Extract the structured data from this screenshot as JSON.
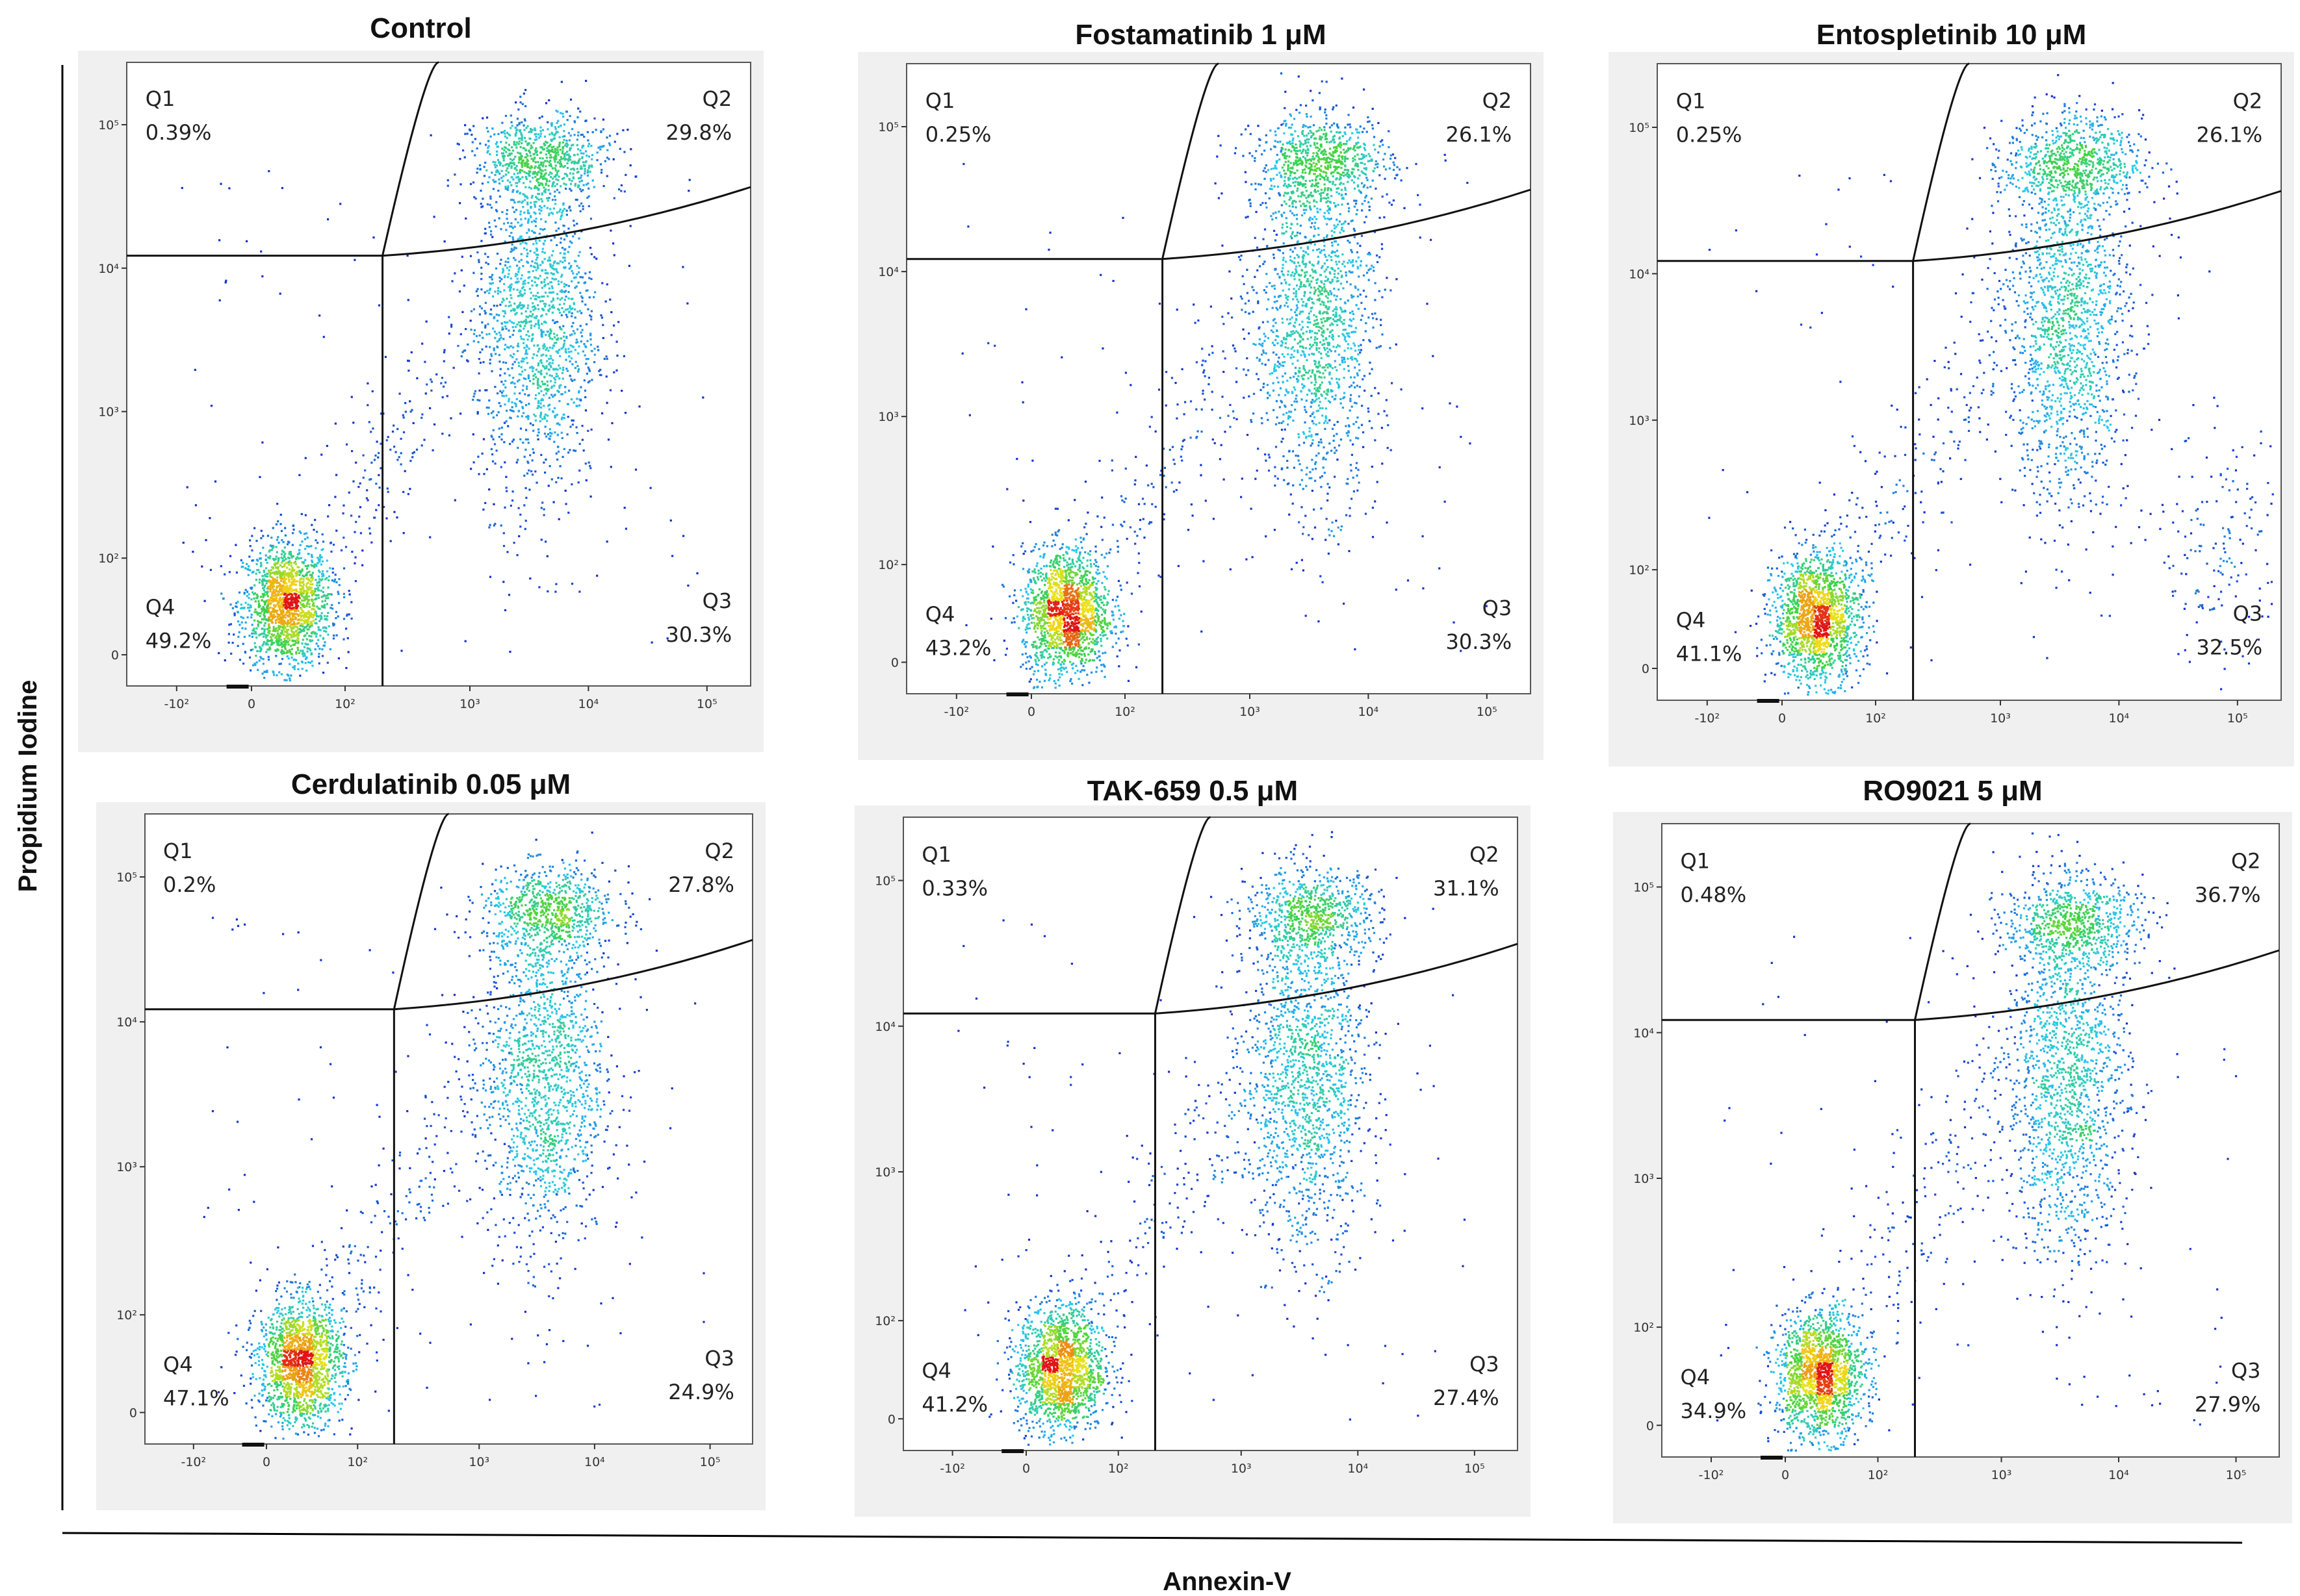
{
  "chart_data": {
    "type": "scatter",
    "subtype": "flow-cytometry-density-dot-plot",
    "xlabel": "Annexin-V",
    "ylabel": "Propidium Iodine",
    "x_ticks": [
      "-10²",
      "0",
      "10²",
      "10³",
      "10⁴",
      "10⁵"
    ],
    "y_ticks": [
      "0",
      "10²",
      "10³",
      "10⁴",
      "10⁵"
    ],
    "quadrant_labels": [
      "Q1",
      "Q2",
      "Q3",
      "Q4"
    ],
    "panels": [
      {
        "title": "Control",
        "Q1": "0.39%",
        "Q2": "29.8%",
        "Q3": "30.3%",
        "Q4": "49.2%"
      },
      {
        "title": "Fostamatinib 1 μM",
        "Q1": "0.25%",
        "Q2": "26.1%",
        "Q3": "30.3%",
        "Q4": "43.2%"
      },
      {
        "title": "Entospletinib 10 μM",
        "Q1": "0.25%",
        "Q2": "26.1%",
        "Q3": "32.5%",
        "Q4": "41.1%"
      },
      {
        "title": "Cerdulatinib 0.05 μM",
        "Q1": "0.2%",
        "Q2": "27.8%",
        "Q3": "24.9%",
        "Q4": "47.1%"
      },
      {
        "title": "TAK-659 0.5 μM",
        "Q1": "0.33%",
        "Q2": "31.1%",
        "Q3": "27.4%",
        "Q4": "41.2%"
      },
      {
        "title": "RO9021 5 μM",
        "Q1": "0.48%",
        "Q2": "36.7%",
        "Q3": "27.9%",
        "Q4": "34.9%"
      }
    ],
    "colors": {
      "panel_bg": "#f0f0f0",
      "plot_bg": "#ffffff",
      "gate_line": "#111111",
      "density_low": "#1414c8",
      "density_mid": "#38d0e8",
      "density_high": "#e01010"
    }
  }
}
